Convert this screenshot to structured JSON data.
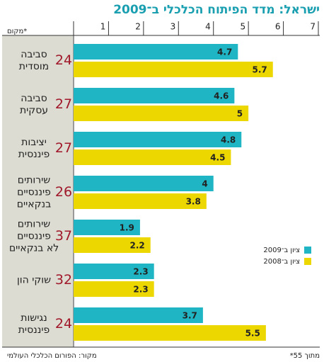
{
  "chart_data": {
    "type": "barh",
    "title": "ישראל: מדד הפיתוח הכלכלי ב־2009",
    "rank_label": "מקום*",
    "categories": [
      [
        "סביבה",
        "מוסדית"
      ],
      [
        "סביבה",
        "עסקית"
      ],
      [
        "יציבות",
        "פיננסית"
      ],
      [
        "שירותים",
        "פיננסיים",
        "בנקאיים"
      ],
      [
        "שירותים",
        "פיננסיים",
        "לא בנקאיים"
      ],
      [
        "שוקי הון"
      ],
      [
        "נגישות",
        "פיננסית"
      ]
    ],
    "ranks": [
      24,
      27,
      27,
      26,
      37,
      32,
      24
    ],
    "series": [
      {
        "name": "ציון ב־2009",
        "color": "#1fb5c4",
        "values": [
          4.7,
          4.6,
          4.8,
          4,
          1.9,
          2.3,
          3.7
        ]
      },
      {
        "name": "ציון ב־2008",
        "color": "#ecd700",
        "values": [
          5.7,
          5,
          4.5,
          3.8,
          2.2,
          2.3,
          5.5
        ]
      }
    ],
    "xlim": [
      0,
      7
    ],
    "xticks": [
      1,
      2,
      3,
      4,
      5,
      6,
      7
    ],
    "source": "מקור: הפורום הכלכלי העולמי",
    "footnote": "*מתוך 55"
  }
}
